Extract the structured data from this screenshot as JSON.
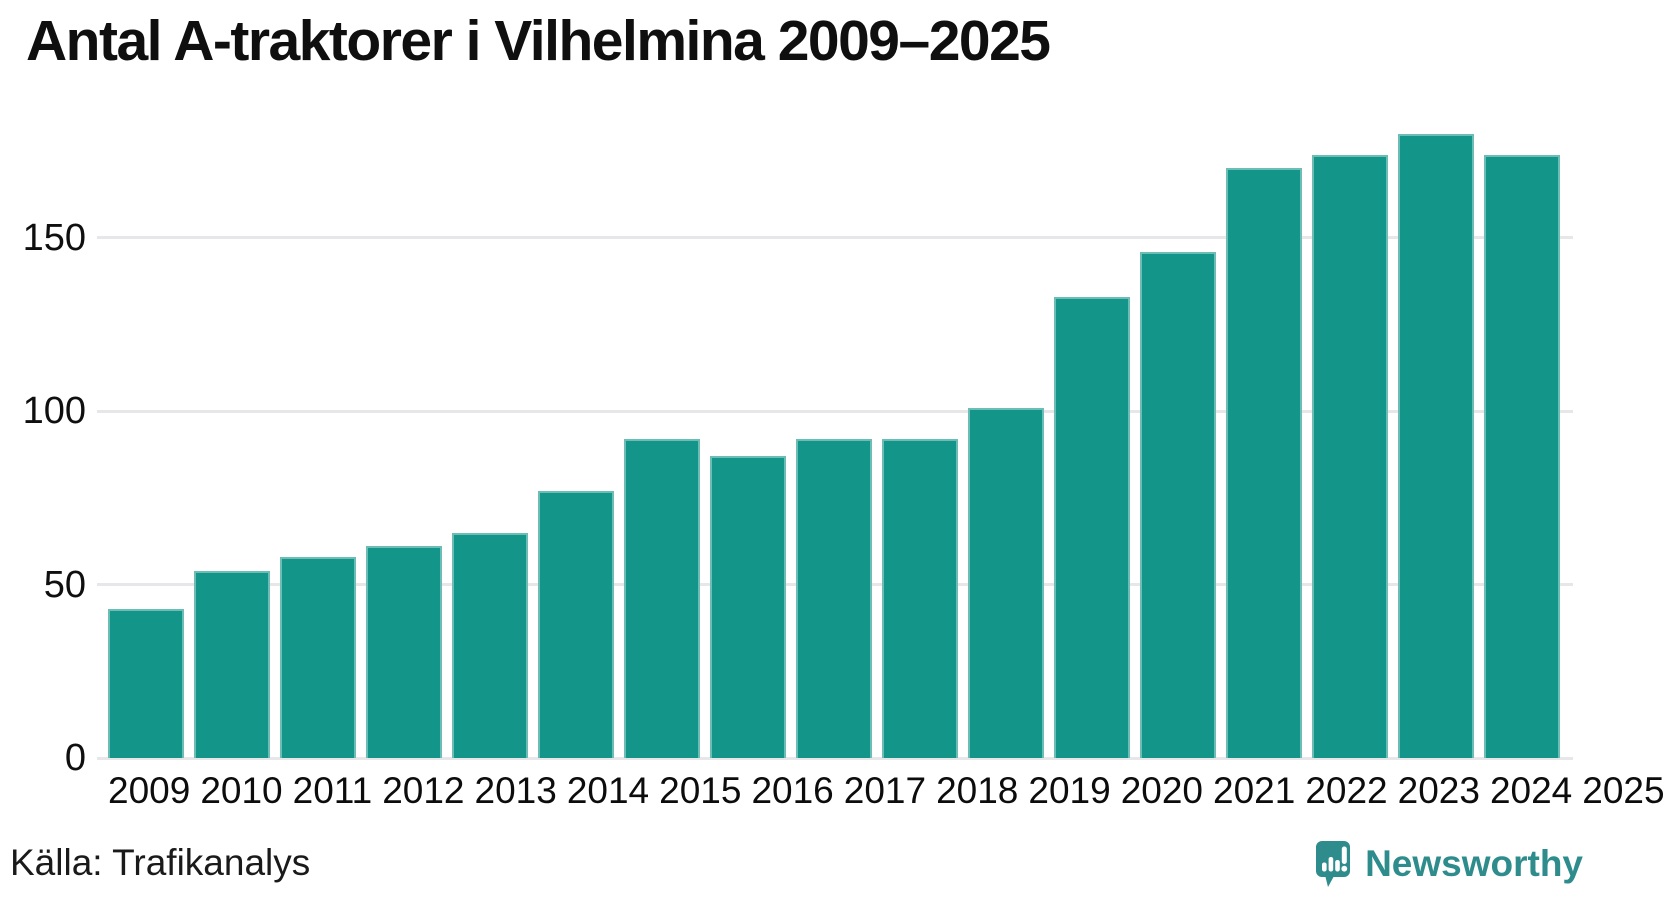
{
  "title": "Antal A-traktorer i Vilhelmina 2009–2025",
  "source": "Källa: Trafikanalys",
  "brand": {
    "name": "Newsworthy",
    "color": "#2f8c8c",
    "icon": "newsworthy-speech-bubble-chart-icon"
  },
  "chart_data": {
    "type": "bar",
    "title": "Antal A-traktorer i Vilhelmina 2009–2025",
    "categories": [
      "2009",
      "2010",
      "2011",
      "2012",
      "2013",
      "2014",
      "2015",
      "2016",
      "2017",
      "2018",
      "2019",
      "2020",
      "2021",
      "2022",
      "2023",
      "2024",
      "2025"
    ],
    "values": [
      43,
      54,
      58,
      61,
      65,
      77,
      92,
      87,
      92,
      92,
      101,
      133,
      146,
      170,
      174,
      180,
      174
    ],
    "xlabel": "",
    "ylabel": "",
    "yticks": [
      0,
      50,
      100,
      150
    ],
    "ylim": [
      0,
      186
    ],
    "grid": "horizontal",
    "legend": "none",
    "bar_color": "#13958a",
    "grid_color": "#e7e7ea"
  }
}
